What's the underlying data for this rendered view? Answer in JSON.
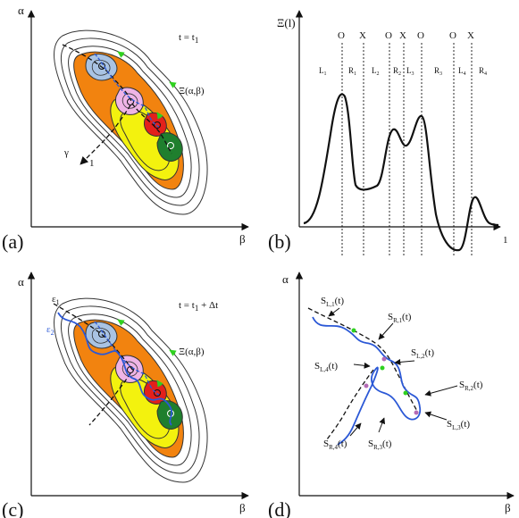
{
  "panel_a": {
    "letter": "(a)",
    "x_axis": "β",
    "y_axis": "α",
    "time_label": "t = t",
    "time_sub": "1",
    "functional": "Ξ(α,β)",
    "gamma": "γ",
    "one": "1"
  },
  "panel_b": {
    "letter": "(b)",
    "y_axis": "Ξ(l)",
    "x_end": "1",
    "markers": [
      "O",
      "X",
      "O",
      "X",
      "O",
      "O",
      "X"
    ],
    "regions": [
      {
        "name": "L",
        "sub": "1"
      },
      {
        "name": "R",
        "sub": "1"
      },
      {
        "name": "L",
        "sub": "2"
      },
      {
        "name": "R",
        "sub": "2"
      },
      {
        "name": "L",
        "sub": "3"
      },
      {
        "name": "R",
        "sub": "3"
      },
      {
        "name": "L",
        "sub": "4"
      },
      {
        "name": "R",
        "sub": "4"
      }
    ]
  },
  "panel_c": {
    "letter": "(c)",
    "x_axis": "β",
    "y_axis": "α",
    "time_label": "t = t",
    "time_sub": "1",
    "time_suffix": " + Δt",
    "functional": "Ξ(α,β)",
    "eps1": "ε",
    "eps1_sub": "1",
    "eps2": "ε",
    "eps2_sub": "2"
  },
  "panel_d": {
    "letter": "(d)",
    "x_axis": "β",
    "y_axis": "α",
    "labels": [
      {
        "main": "S",
        "sub": "L,1",
        "tail": "(t)"
      },
      {
        "main": "S",
        "sub": "R,1",
        "tail": "(t)"
      },
      {
        "main": "S",
        "sub": "L,2",
        "tail": "(t)"
      },
      {
        "main": "S",
        "sub": "L,4",
        "tail": "(t)"
      },
      {
        "main": "S",
        "sub": "R,2",
        "tail": "(t)"
      },
      {
        "main": "S",
        "sub": "L,3",
        "tail": "(t)"
      },
      {
        "main": "S",
        "sub": "R,4",
        "tail": "(t)"
      },
      {
        "main": "S",
        "sub": "R,3",
        "tail": "(t)"
      }
    ]
  },
  "colors": {
    "outer_ring": "#ffffff",
    "orange": "#f2830f",
    "yellow": "#f3f20e",
    "blue_blob": "#a9c3e3",
    "pink_blob": "#efb4e6",
    "red_blob": "#e3201b",
    "green_blob": "#1f7f2e",
    "path_blue": "#2b58d6",
    "arrow_green": "#2fd11f"
  }
}
